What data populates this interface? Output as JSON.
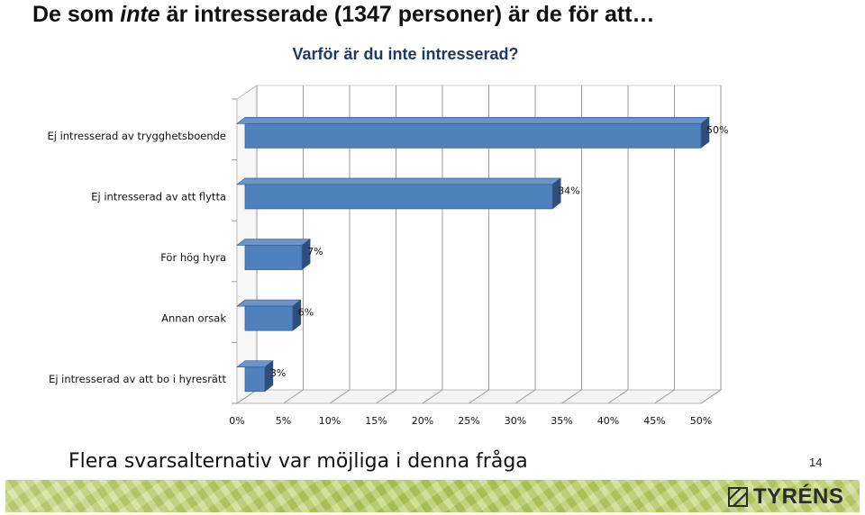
{
  "slide": {
    "title_prefix": "De som ",
    "title_emph": "inte",
    "title_suffix": " är intresserade (1347 personer) är de för att…",
    "footnote": "Flera svarsalternativ var möjliga i denna fråga",
    "page_number": "14",
    "logo_text": "TYRÉNS"
  },
  "chart_data": {
    "type": "bar",
    "orientation": "horizontal",
    "title": "Varför är du inte intresserad?",
    "categories": [
      "Ej intresserad av trygghetsboende",
      "Ej intresserad av att flytta",
      "För hög hyra",
      "Annan orsak",
      "Ej intresserad av att bo i hyresrätt"
    ],
    "values": [
      50,
      34,
      7,
      6,
      3
    ],
    "data_labels": [
      "50%",
      "34%",
      "7%",
      "6%",
      "3%"
    ],
    "xlim": [
      0,
      50
    ],
    "xticks": [
      0,
      5,
      10,
      15,
      20,
      25,
      30,
      35,
      40,
      45,
      50
    ],
    "xtick_labels": [
      "0%",
      "5%",
      "10%",
      "15%",
      "20%",
      "25%",
      "30%",
      "35%",
      "40%",
      "45%",
      "50%"
    ],
    "grid": true,
    "legend": "none",
    "bar_color": "#4f81bd",
    "bar_side_color": "#2f4f7a",
    "bar_top_color": "#6d93c8"
  }
}
